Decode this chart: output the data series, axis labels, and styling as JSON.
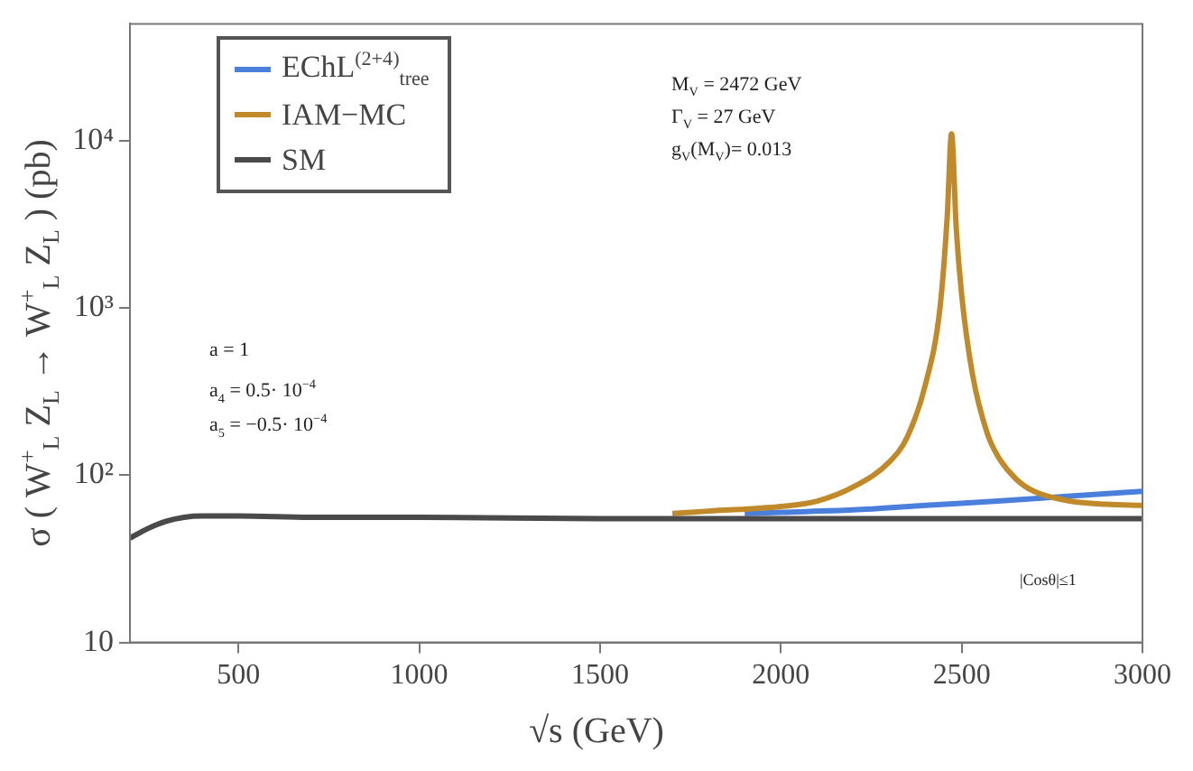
{
  "chart_data": {
    "type": "line",
    "xlabel": "√s (GeV)",
    "ylabel": "σ ( W$^{+}$$_{L}$ Z$_{L}$ → W$^{+}$$_{L}$ Z$_{L}$ ) (pb)",
    "xlim": [
      200,
      3000
    ],
    "xticks": [
      500,
      1000,
      1500,
      2000,
      2500,
      3000
    ],
    "ylim": [
      10,
      50000
    ],
    "yticks": [
      10,
      {
        "value": 100,
        "label": "10²"
      },
      {
        "value": 1000,
        "label": "10³"
      },
      {
        "value": 10000,
        "label": "10⁴"
      }
    ],
    "log": "y",
    "grid": false,
    "legend": "top left",
    "marker": "none",
    "line_style": "solid",
    "annotations": [
      "M$_{V}$ = 2472 GeV",
      "Γ$_{V}$ = 27 GeV",
      "g$_{V}$(M$_{V}$)= 0.013",
      "a = 1",
      "a$_{4}$ = 0.5· 10$^{−4}$",
      "a$_{5}$ = −0.5· 10$^{−4}$",
      "|Cosθ|≤1"
    ],
    "series": [
      {
        "name": "EChL$^{(2+4)}$$_{tree}$",
        "color": "#4a7fdc",
        "x": [
          1900,
          2000,
          2200,
          2400,
          2600,
          2800,
          3000
        ],
        "values": [
          59,
          60,
          62,
          66,
          70,
          75,
          80
        ]
      },
      {
        "name": "IAM−MC",
        "color": "#c08a2a",
        "x": [
          1700,
          1800,
          2000,
          2100,
          2200,
          2300,
          2350,
          2400,
          2440,
          2460,
          2472,
          2485,
          2500,
          2530,
          2570,
          2600,
          2650,
          2700,
          2800,
          2900,
          3000
        ],
        "values": [
          59,
          61,
          65,
          70,
          85,
          120,
          170,
          350,
          1000,
          3500,
          11000,
          3000,
          1200,
          400,
          180,
          130,
          95,
          80,
          70,
          67,
          66
        ]
      },
      {
        "name": "SM",
        "color": "#4a4a4a",
        "x": [
          200,
          250,
          300,
          350,
          400,
          500,
          700,
          1000,
          1500,
          2000,
          2500,
          3000
        ],
        "values": [
          42,
          48,
          53,
          56,
          57,
          57,
          56,
          56,
          55,
          55,
          55,
          55
        ]
      }
    ]
  }
}
